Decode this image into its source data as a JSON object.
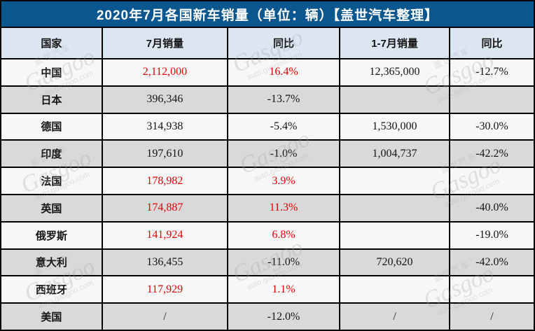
{
  "colors": {
    "title_bar_bg": "#0a578f",
    "title_text": "#ffffff",
    "header_bg": "#dce6f1",
    "row_light": "#f7f7f7",
    "row_dark": "#d9d9d9",
    "grid_border": "#000000",
    "positive_red": "#e60000",
    "body_text": "#141414"
  },
  "watermark": {
    "brand": "Gasgoo",
    "domain": "auto.gasgoo.com",
    "cn_brand": "盖世汽车"
  },
  "chart_data": {
    "type": "table",
    "title": "2020年7月各国新车销量（单位：辆）【盖世汽车整理】",
    "columns": [
      "国家",
      "7月销量",
      "同比",
      "1-7月销量",
      "同比"
    ],
    "rows": [
      {
        "country": "中国",
        "cells": [
          {
            "text": "2,112,000",
            "red": true
          },
          {
            "text": "16.4%",
            "red": true
          },
          {
            "text": "12,365,000",
            "red": false
          },
          {
            "text": "-12.7%",
            "red": false
          }
        ]
      },
      {
        "country": "日本",
        "cells": [
          {
            "text": "396,346",
            "red": false
          },
          {
            "text": "-13.7%",
            "red": false
          },
          {
            "text": "",
            "red": false
          },
          {
            "text": "",
            "red": false
          }
        ]
      },
      {
        "country": "德国",
        "cells": [
          {
            "text": "314,938",
            "red": false
          },
          {
            "text": "-5.4%",
            "red": false
          },
          {
            "text": "1,530,000",
            "red": false
          },
          {
            "text": "-30.0%",
            "red": false
          }
        ]
      },
      {
        "country": "印度",
        "cells": [
          {
            "text": "197,610",
            "red": false
          },
          {
            "text": "-1.0%",
            "red": false
          },
          {
            "text": "1,004,737",
            "red": false
          },
          {
            "text": "-42.2%",
            "red": false
          }
        ]
      },
      {
        "country": "法国",
        "cells": [
          {
            "text": "178,982",
            "red": true
          },
          {
            "text": "3.9%",
            "red": true
          },
          {
            "text": "",
            "red": false
          },
          {
            "text": "",
            "red": false
          }
        ]
      },
      {
        "country": "英国",
        "cells": [
          {
            "text": "174,887",
            "red": true
          },
          {
            "text": "11.3%",
            "red": true
          },
          {
            "text": "",
            "red": false
          },
          {
            "text": "-40.0%",
            "red": false
          }
        ]
      },
      {
        "country": "俄罗斯",
        "cells": [
          {
            "text": "141,924",
            "red": true
          },
          {
            "text": "6.8%",
            "red": true
          },
          {
            "text": "",
            "red": false
          },
          {
            "text": "-19.0%",
            "red": false
          }
        ]
      },
      {
        "country": "意大利",
        "cells": [
          {
            "text": "136,455",
            "red": false
          },
          {
            "text": "-11.0%",
            "red": false
          },
          {
            "text": "720,620",
            "red": false
          },
          {
            "text": "-42.0%",
            "red": false
          }
        ]
      },
      {
        "country": "西班牙",
        "cells": [
          {
            "text": "117,929",
            "red": true
          },
          {
            "text": "1.1%",
            "red": true
          },
          {
            "text": "",
            "red": false
          },
          {
            "text": "",
            "red": false
          }
        ]
      },
      {
        "country": "美国",
        "cells": [
          {
            "text": "/",
            "red": false
          },
          {
            "text": "-12.0%",
            "red": false
          },
          {
            "text": "/",
            "red": false
          },
          {
            "text": "/",
            "red": false
          }
        ]
      }
    ]
  }
}
